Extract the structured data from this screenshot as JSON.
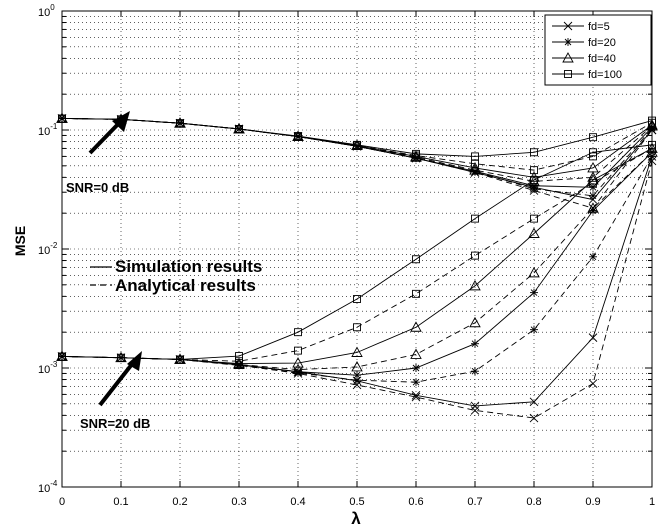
{
  "chart_data": {
    "type": "line",
    "title": "",
    "xlabel": "λ",
    "ylabel": "MSE",
    "xlim": [
      0,
      1
    ],
    "ylim": [
      0.0001,
      1
    ],
    "yscale": "log",
    "grid": true,
    "legend_position": "top-right",
    "x_ticks": [
      "0",
      "0.1",
      "0.2",
      "0.3",
      "0.4",
      "0.5",
      "0.6",
      "0.7",
      "0.8",
      "0.9",
      "1"
    ],
    "y_ticks": [
      {
        "base": "10",
        "exp": "0"
      },
      {
        "base": "10",
        "exp": "-1"
      },
      {
        "base": "10",
        "exp": "-2"
      },
      {
        "base": "10",
        "exp": "-3"
      },
      {
        "base": "10",
        "exp": "-4"
      }
    ],
    "legend": [
      {
        "label": "fd=5",
        "marker": "x"
      },
      {
        "label": "fd=20",
        "marker": "star"
      },
      {
        "label": "fd=40",
        "marker": "triangle"
      },
      {
        "label": "fd=100",
        "marker": "square"
      }
    ],
    "style_legend": {
      "solid": "Simulation results",
      "dashed": "Analytical results"
    },
    "annotations": [
      {
        "text": "SNR=0 dB",
        "points_to": [
          0.12,
          0.12
        ]
      },
      {
        "text": "SNR=20 dB",
        "points_to": [
          0.135,
          0.0012
        ]
      }
    ],
    "x": [
      0,
      0.1,
      0.2,
      0.3,
      0.4,
      0.5,
      0.6,
      0.7,
      0.8,
      0.9,
      1
    ],
    "series": [
      {
        "name": "fd=5",
        "snr": "0 dB",
        "kind": "simulation",
        "marker": "x",
        "values": [
          0.125,
          0.123,
          0.114,
          0.102,
          0.088,
          0.073,
          0.058,
          0.044,
          0.033,
          0.026,
          0.1
        ]
      },
      {
        "name": "fd=5",
        "snr": "0 dB",
        "kind": "analytical",
        "marker": "x",
        "values": [
          0.125,
          0.123,
          0.114,
          0.102,
          0.088,
          0.073,
          0.058,
          0.044,
          0.031,
          0.022,
          0.1
        ]
      },
      {
        "name": "fd=20",
        "snr": "0 dB",
        "kind": "simulation",
        "marker": "star",
        "values": [
          0.125,
          0.123,
          0.114,
          0.102,
          0.088,
          0.073,
          0.058,
          0.045,
          0.034,
          0.033,
          0.105
        ]
      },
      {
        "name": "fd=20",
        "snr": "0 dB",
        "kind": "analytical",
        "marker": "star",
        "values": [
          0.125,
          0.123,
          0.114,
          0.102,
          0.088,
          0.073,
          0.058,
          0.045,
          0.032,
          0.028,
          0.103
        ]
      },
      {
        "name": "fd=40",
        "snr": "0 dB",
        "kind": "simulation",
        "marker": "triangle",
        "values": [
          0.125,
          0.123,
          0.114,
          0.102,
          0.088,
          0.074,
          0.06,
          0.048,
          0.04,
          0.048,
          0.11
        ]
      },
      {
        "name": "fd=40",
        "snr": "0 dB",
        "kind": "analytical",
        "marker": "triangle",
        "values": [
          0.125,
          0.123,
          0.114,
          0.102,
          0.088,
          0.074,
          0.059,
          0.046,
          0.037,
          0.04,
          0.108
        ]
      },
      {
        "name": "fd=100",
        "snr": "0 dB",
        "kind": "simulation",
        "marker": "square",
        "values": [
          0.125,
          0.123,
          0.114,
          0.102,
          0.089,
          0.075,
          0.063,
          0.06,
          0.065,
          0.087,
          0.12
        ]
      },
      {
        "name": "fd=100",
        "snr": "0 dB",
        "kind": "analytical",
        "marker": "square",
        "values": [
          0.125,
          0.123,
          0.114,
          0.102,
          0.088,
          0.074,
          0.061,
          0.052,
          0.046,
          0.06,
          0.115
        ]
      },
      {
        "name": "fd=5",
        "snr": "20 dB",
        "kind": "simulation",
        "marker": "x",
        "values": [
          0.00125,
          0.00122,
          0.00118,
          0.00107,
          0.00093,
          0.00078,
          0.00059,
          0.00048,
          0.00052,
          0.0018,
          0.06
        ]
      },
      {
        "name": "fd=5",
        "snr": "20 dB",
        "kind": "analytical",
        "marker": "x",
        "values": [
          0.00125,
          0.00122,
          0.00118,
          0.00106,
          0.0009,
          0.00072,
          0.00057,
          0.00044,
          0.00038,
          0.00074,
          0.055
        ]
      },
      {
        "name": "fd=20",
        "snr": "20 dB",
        "kind": "simulation",
        "marker": "star",
        "values": [
          0.00125,
          0.00122,
          0.00118,
          0.00106,
          0.00093,
          0.00087,
          0.001,
          0.0016,
          0.0043,
          0.021,
          0.065
        ]
      },
      {
        "name": "fd=20",
        "snr": "20 dB",
        "kind": "analytical",
        "marker": "star",
        "values": [
          0.00125,
          0.00122,
          0.00118,
          0.00105,
          0.00091,
          0.00079,
          0.00076,
          0.00094,
          0.0021,
          0.0086,
          0.06
        ]
      },
      {
        "name": "fd=40",
        "snr": "20 dB",
        "kind": "simulation",
        "marker": "triangle",
        "values": [
          0.00125,
          0.00122,
          0.00118,
          0.00109,
          0.0011,
          0.00135,
          0.0022,
          0.0049,
          0.0135,
          0.038,
          0.07
        ]
      },
      {
        "name": "fd=40",
        "snr": "20 dB",
        "kind": "analytical",
        "marker": "triangle",
        "values": [
          0.00125,
          0.00122,
          0.00118,
          0.00107,
          0.00097,
          0.00102,
          0.0013,
          0.0024,
          0.0063,
          0.022,
          0.065
        ]
      },
      {
        "name": "fd=100",
        "snr": "20 dB",
        "kind": "simulation",
        "marker": "square",
        "values": [
          0.00125,
          0.00122,
          0.00118,
          0.00126,
          0.002,
          0.0038,
          0.0082,
          0.018,
          0.038,
          0.065,
          0.075
        ]
      },
      {
        "name": "fd=100",
        "snr": "20 dB",
        "kind": "analytical",
        "marker": "square",
        "values": [
          0.00125,
          0.00122,
          0.00118,
          0.00114,
          0.0014,
          0.0022,
          0.0042,
          0.0088,
          0.018,
          0.036,
          0.07
        ]
      }
    ]
  }
}
